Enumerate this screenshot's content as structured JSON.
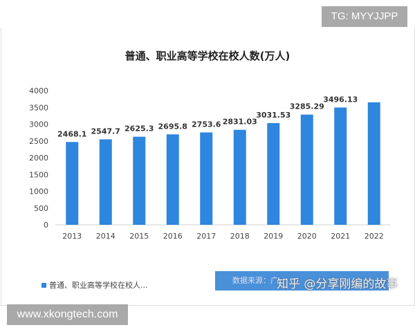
{
  "watermark_tg": "TG: MYYJJPP",
  "watermark_site": "www.xkongtech.com",
  "watermark_zhihu": "知乎 @分享刚编的故事",
  "source_text": "数据来源：广",
  "chart_data": {
    "type": "bar",
    "title": "普通、职业高等学校在校人数(万人)",
    "categories": [
      "2013",
      "2014",
      "2015",
      "2016",
      "2017",
      "2018",
      "2019",
      "2020",
      "2021",
      "2022"
    ],
    "values": [
      2468.1,
      2547.7,
      2625.3,
      2695.8,
      2753.6,
      2831.03,
      3031.53,
      3285.29,
      3496.13,
      3650
    ],
    "data_labels": [
      "2468.1",
      "2547.7",
      "2625.3",
      "2695.8",
      "2753.6",
      "2831.03",
      "3031.53",
      "3285.29",
      "3496.13",
      ""
    ],
    "ylim": [
      0,
      4000
    ],
    "yticks": [
      "0",
      "500",
      "1000",
      "1500",
      "2000",
      "2500",
      "3000",
      "3500",
      "4000"
    ],
    "grid": false,
    "legend": {
      "position": "bottom-left",
      "label": "普通、职业高等学校在校人..."
    },
    "color": "#2e86de"
  }
}
